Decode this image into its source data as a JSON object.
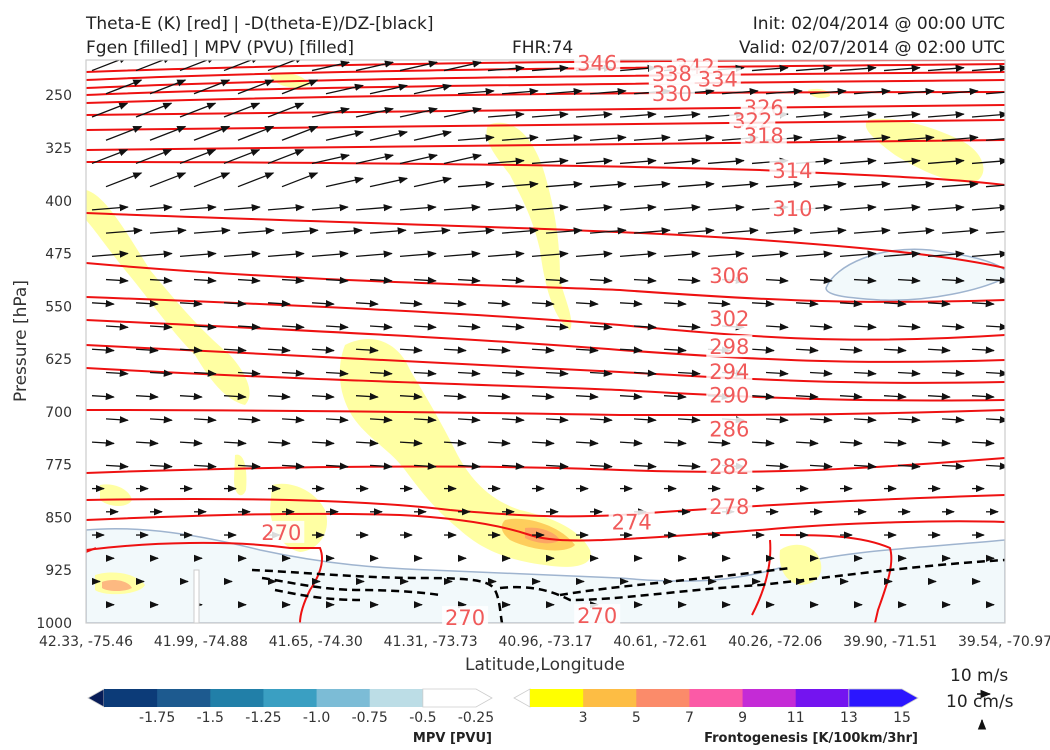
{
  "header": {
    "title_left_1": "Theta-E (K) [red] | -D(theta-E)/DZ-[black]",
    "title_left_2": "Fgen [filled] | MPV (PVU) [filled]",
    "fhr": "FHR:74",
    "init": "Init: 02/04/2014 @ 00:00 UTC",
    "valid": "Valid: 02/07/2014 @ 02:00 UTC"
  },
  "chart_data": {
    "type": "cross-section",
    "ylabel": "Pressure [hPa]",
    "xlabel": "Latitude,Longitude",
    "y_ticks": [
      250,
      325,
      400,
      475,
      550,
      625,
      700,
      775,
      850,
      925,
      1000
    ],
    "ylim": [
      1000,
      200
    ],
    "x_ticks": [
      "42.33, -75.46",
      "41.99, -74.88",
      "41.65, -74.30",
      "41.31, -73.73",
      "40.96, -73.17",
      "40.61, -72.61",
      "40.26, -72.06",
      "39.90, -71.51",
      "39.54, -70.97"
    ],
    "theta_e_contour_labels": [
      {
        "value": "346",
        "x": 4.45,
        "p": 205
      },
      {
        "value": "342",
        "x": 5.3,
        "p": 210
      },
      {
        "value": "338",
        "x": 5.1,
        "p": 220
      },
      {
        "value": "334",
        "x": 5.5,
        "p": 228
      },
      {
        "value": "330",
        "x": 5.1,
        "p": 248
      },
      {
        "value": "326",
        "x": 5.9,
        "p": 268
      },
      {
        "value": "322",
        "x": 5.8,
        "p": 287
      },
      {
        "value": "318",
        "x": 5.9,
        "p": 308
      },
      {
        "value": "314",
        "x": 6.15,
        "p": 358
      },
      {
        "value": "310",
        "x": 6.15,
        "p": 412
      },
      {
        "value": "306",
        "x": 5.6,
        "p": 507
      },
      {
        "value": "302",
        "x": 5.6,
        "p": 568
      },
      {
        "value": "298",
        "x": 5.6,
        "p": 608
      },
      {
        "value": "294",
        "x": 5.6,
        "p": 643
      },
      {
        "value": "290",
        "x": 5.6,
        "p": 677
      },
      {
        "value": "286",
        "x": 5.6,
        "p": 725
      },
      {
        "value": "282",
        "x": 5.6,
        "p": 778
      },
      {
        "value": "278",
        "x": 5.6,
        "p": 835
      },
      {
        "value": "274",
        "x": 4.75,
        "p": 857
      },
      {
        "value": "270",
        "x": 1.7,
        "p": 872
      },
      {
        "value": "270",
        "x": 3.3,
        "p": 993
      },
      {
        "value": "270",
        "x": 4.45,
        "p": 990
      }
    ],
    "wind_reference": {
      "horizontal": "10 m/s",
      "vertical": "10 cm/s"
    },
    "colorbar_mpv": {
      "label": "MPV [PVU]",
      "ticks": [
        "-1.75",
        "-1.5",
        "-1.25",
        "-1.0",
        "-0.75",
        "-0.5",
        "-0.25"
      ],
      "colors": [
        "#081d58",
        "#0c3b78",
        "#1d5a8f",
        "#217fa8",
        "#3a9fc2",
        "#7cbcd6",
        "#bcdde6",
        "#ffffff"
      ]
    },
    "colorbar_fgen": {
      "label": "Frontogenesis [K/100km/3hr]",
      "ticks": [
        "3",
        "5",
        "7",
        "9",
        "11",
        "13",
        "15"
      ],
      "colors": [
        "#ffffff",
        "#ffff00",
        "#fdbd44",
        "#fb8b6a",
        "#fb5aa6",
        "#c42bd6",
        "#7414f0",
        "#2b16ff"
      ]
    }
  }
}
